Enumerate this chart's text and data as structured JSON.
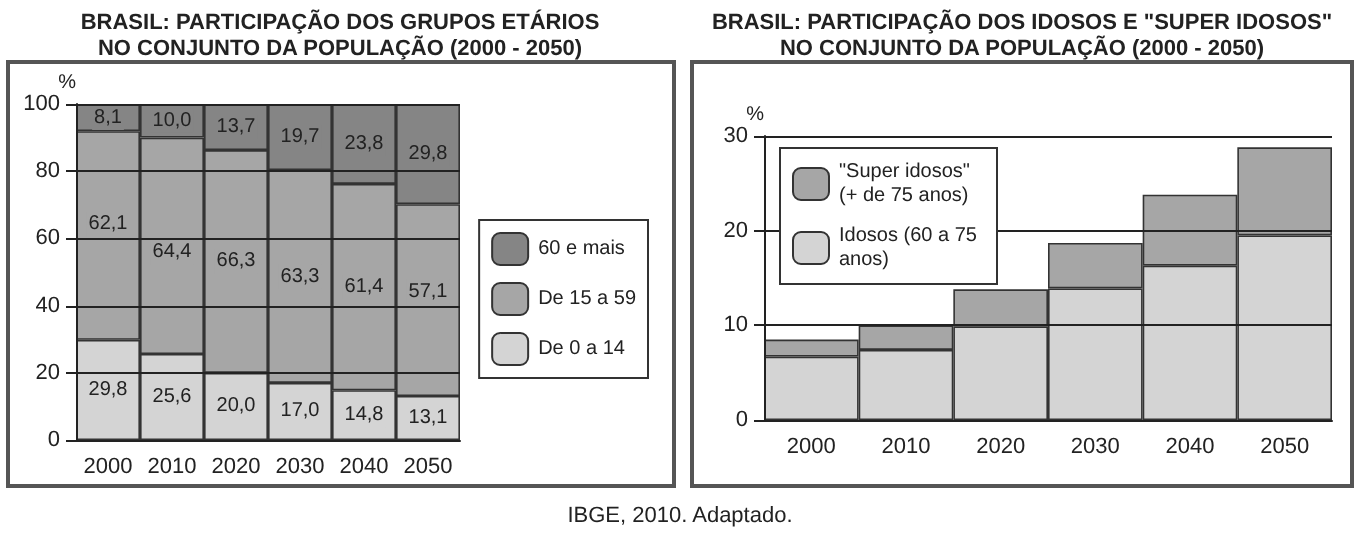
{
  "chart_data": [
    {
      "type": "bar",
      "title": "BRASIL: PARTICIPAÇÃO DOS GRUPOS ETÁRIOS\nNO CONJUNTO DA POPULAÇÃO (2000 - 2050)",
      "ylabel": "%",
      "categories": [
        "2000",
        "2010",
        "2020",
        "2030",
        "2040",
        "2050"
      ],
      "stacked": true,
      "series": [
        {
          "name": "De 0 a 14",
          "color": "#d4d4d4",
          "values": [
            29.8,
            25.6,
            20.0,
            17.0,
            14.8,
            13.1
          ],
          "value_labels": [
            "29,8",
            "25,6",
            "20,0",
            "17,0",
            "14,8",
            "13,1"
          ]
        },
        {
          "name": "De 15 a 59",
          "color": "#a6a6a6",
          "values": [
            62.1,
            64.4,
            66.3,
            63.3,
            61.4,
            57.1
          ],
          "value_labels": [
            "62,1",
            "64,4",
            "66,3",
            "63,3",
            "61,4",
            "57,1"
          ]
        },
        {
          "name": "60 e mais",
          "color": "#858585",
          "values": [
            8.1,
            10.0,
            13.7,
            19.7,
            23.8,
            29.8
          ],
          "value_labels": [
            "8,1",
            "10,0",
            "13,7",
            "19,7",
            "23,8",
            "29,8"
          ]
        }
      ],
      "ylim": [
        0,
        100
      ],
      "yticks": [
        0,
        20,
        40,
        60,
        80,
        100
      ],
      "grid": "y",
      "legend": "right",
      "annotations": [
        "IBGE, 2010. Adaptado."
      ]
    },
    {
      "type": "bar",
      "title": "BRASIL: PARTICIPAÇÃO DOS IDOSOS E \"SUPER IDOSOS\"\nNO CONJUNTO DA POPULAÇÃO (2000 - 2050)",
      "ylabel": "%",
      "categories": [
        "2000",
        "2010",
        "2020",
        "2030",
        "2040",
        "2050"
      ],
      "stacked": true,
      "series": [
        {
          "name": "Idosos (60 a 75 anos)",
          "color": "#d4d4d4",
          "values": [
            6.7,
            7.4,
            9.9,
            13.9,
            16.3,
            19.5
          ]
        },
        {
          "name": "\"Super idosos\" (+ de 75 anos)",
          "color": "#a6a6a6",
          "values": [
            1.8,
            2.6,
            3.9,
            4.8,
            7.5,
            9.3
          ]
        }
      ],
      "ylim": [
        0,
        30
      ],
      "yticks": [
        0,
        10,
        20,
        30
      ],
      "grid": "y",
      "legend": "top left"
    }
  ]
}
